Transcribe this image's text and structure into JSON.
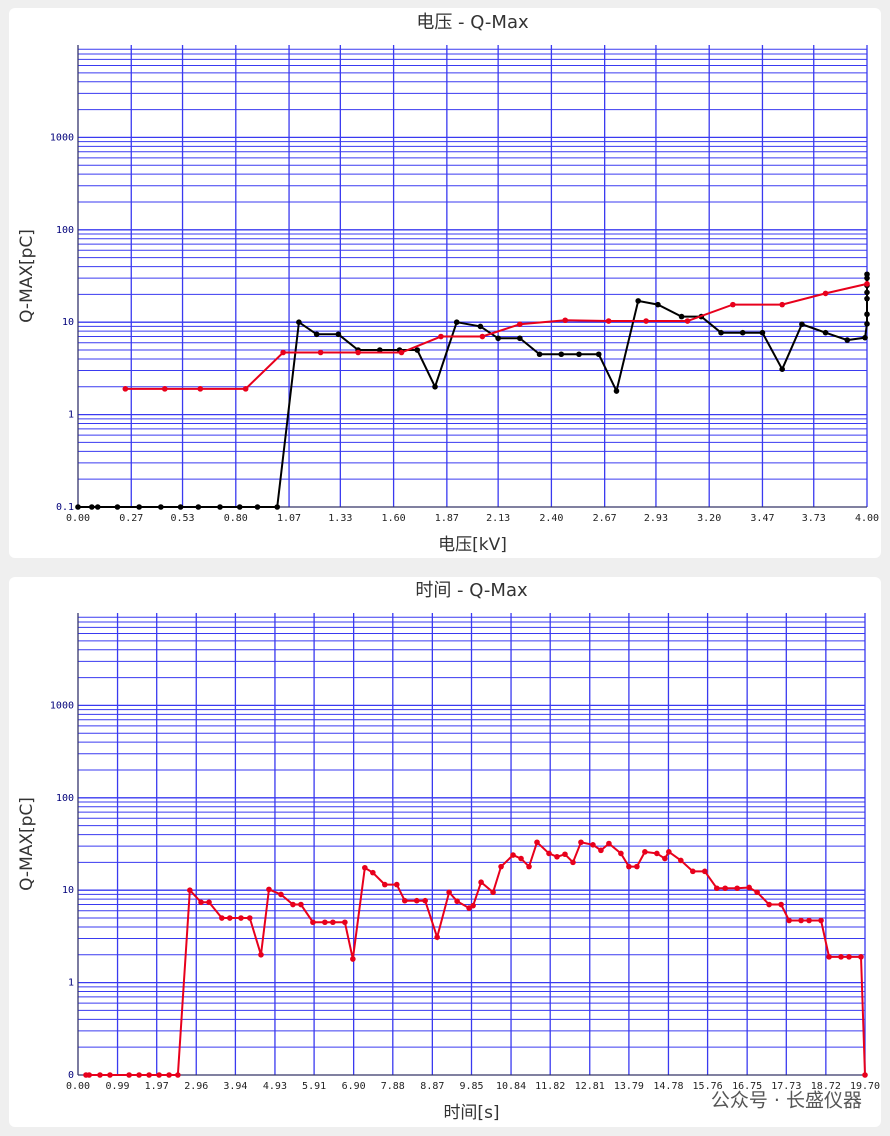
{
  "chart_data": [
    {
      "type": "line",
      "title": "电压 - Q-Max",
      "x_label": "电压[kV]",
      "y_label": "Q-MAX[pC]",
      "xlim": [
        0,
        4
      ],
      "ylim": [
        0.1,
        10000
      ],
      "yscale": "log",
      "grid": true,
      "grid_color": "#3a3af0",
      "xticks": [
        {
          "value": 0,
          "label": "0.00"
        },
        0.27,
        0.53,
        {
          "value": 0.8,
          "label": "0.80"
        },
        1.07,
        1.33,
        {
          "value": 1.6,
          "label": "1.60"
        },
        1.87,
        2.13,
        {
          "value": 2.4,
          "label": "2.40"
        },
        2.67,
        2.93,
        {
          "value": 3.2,
          "label": "3.20"
        },
        3.47,
        3.73,
        {
          "value": 4,
          "label": "4.00"
        }
      ],
      "yticks": [
        0.1,
        1,
        10,
        100,
        1000
      ],
      "series": [
        {
          "color": "#000000",
          "x": [
            0,
            0.07,
            0.1,
            0.2,
            0.31,
            0.42,
            0.52,
            0.61,
            0.72,
            0.82,
            0.91,
            1.01,
            1.12,
            1.21,
            1.32,
            1.42,
            1.53,
            1.63,
            1.72,
            1.81,
            1.92,
            2.04,
            2.13,
            2.24,
            2.34,
            2.45,
            2.54,
            2.64,
            2.73,
            2.84,
            2.94,
            3.06,
            3.16,
            3.26,
            3.37,
            3.47,
            3.57,
            3.67,
            3.79,
            3.9,
            3.99,
            4,
            4,
            4,
            4,
            4,
            4,
            4
          ],
          "values": [
            0.1,
            0.1,
            0.1,
            0.1,
            0.1,
            0.1,
            0.1,
            0.1,
            0.1,
            0.1,
            0.1,
            0.1,
            10,
            7.4,
            7.4,
            5,
            5,
            5,
            5,
            2,
            10,
            9,
            6.7,
            6.7,
            4.5,
            4.5,
            4.5,
            4.5,
            1.8,
            17,
            15.5,
            11.5,
            11.5,
            7.7,
            7.7,
            7.7,
            3.1,
            9.5,
            7.7,
            6.4,
            6.8,
            9.6,
            12.2,
            18,
            21,
            25,
            30,
            33
          ]
        },
        {
          "color": "#e8001c",
          "x": [
            0.24,
            0.44,
            0.62,
            0.85,
            1.04,
            1.23,
            1.42,
            1.64,
            1.84,
            2.05,
            2.24,
            2.47,
            2.69,
            2.88,
            3.09,
            3.32,
            3.57,
            3.79,
            4
          ],
          "values": [
            1.9,
            1.9,
            1.9,
            1.9,
            4.7,
            4.7,
            4.7,
            4.7,
            7,
            7,
            9.5,
            10.5,
            10.3,
            10.3,
            10.3,
            15.5,
            15.5,
            20.5,
            26
          ]
        }
      ]
    },
    {
      "type": "line",
      "title": "时间 - Q-Max",
      "x_label": "时间[s]",
      "y_label": "Q-MAX[pC]",
      "xlim": [
        0,
        19.7
      ],
      "ylim": [
        0.1,
        10000
      ],
      "yscale": "log",
      "grid": true,
      "grid_color": "#3a3af0",
      "xticks": [
        {
          "value": 0,
          "label": "0.00"
        },
        0.99,
        1.97,
        2.96,
        3.94,
        4.93,
        5.91,
        {
          "value": 6.9,
          "label": "6.90"
        },
        7.88,
        8.87,
        9.85,
        10.84,
        11.82,
        12.81,
        13.79,
        14.78,
        15.76,
        16.75,
        17.73,
        18.72,
        {
          "value": 19.7,
          "label": "19.70"
        }
      ],
      "yticks": [
        {
          "value": 0.1,
          "label": "0"
        },
        1,
        10,
        100,
        1000
      ],
      "series": [
        {
          "color": "#e8001c",
          "x": [
            0.2,
            0.28,
            0.55,
            0.8,
            1.28,
            1.53,
            1.78,
            2.03,
            2.28,
            2.5,
            2.8,
            3.08,
            3.28,
            3.6,
            3.8,
            4.08,
            4.3,
            4.58,
            4.78,
            5.08,
            5.38,
            5.58,
            5.88,
            6.18,
            6.38,
            6.68,
            6.88,
            7.18,
            7.38,
            7.68,
            7.98,
            8.18,
            8.48,
            8.69,
            8.99,
            9.29,
            9.49,
            9.79,
            9.89,
            10.09,
            10.39,
            10.59,
            10.89,
            11.09,
            11.29,
            11.49,
            11.79,
            11.99,
            12.19,
            12.39,
            12.59,
            12.89,
            13.09,
            13.29,
            13.59,
            13.79,
            13.99,
            14.19,
            14.49,
            14.69,
            14.79,
            15.09,
            15.39,
            15.69,
            15.99,
            16.2,
            16.5,
            16.8,
            17,
            17.3,
            17.6,
            17.8,
            18.1,
            18.3,
            18.6,
            18.8,
            19.1,
            19.3,
            19.6,
            19.7
          ],
          "values": [
            0.1,
            0.1,
            0.1,
            0.1,
            0.1,
            0.1,
            0.1,
            0.1,
            0.1,
            0.1,
            10,
            7.4,
            7.4,
            5,
            5,
            5,
            5,
            2,
            10.2,
            9,
            7,
            7,
            4.5,
            4.5,
            4.5,
            4.5,
            1.8,
            17.5,
            15.5,
            11.5,
            11.5,
            7.7,
            7.7,
            7.7,
            3.1,
            9.5,
            7.6,
            6.4,
            6.8,
            12.2,
            9.5,
            18,
            24,
            22,
            18,
            33,
            25,
            23,
            24.5,
            20,
            33,
            31,
            27,
            32,
            25,
            18,
            18,
            26,
            25,
            22,
            26,
            21,
            16,
            16,
            10.5,
            10.5,
            10.5,
            10.7,
            9.5,
            7,
            7,
            4.7,
            4.7,
            4.7,
            4.7,
            1.9,
            1.9,
            1.9,
            1.9,
            0.1
          ]
        }
      ]
    }
  ],
  "watermark": "公众号 · 长盛仪器"
}
